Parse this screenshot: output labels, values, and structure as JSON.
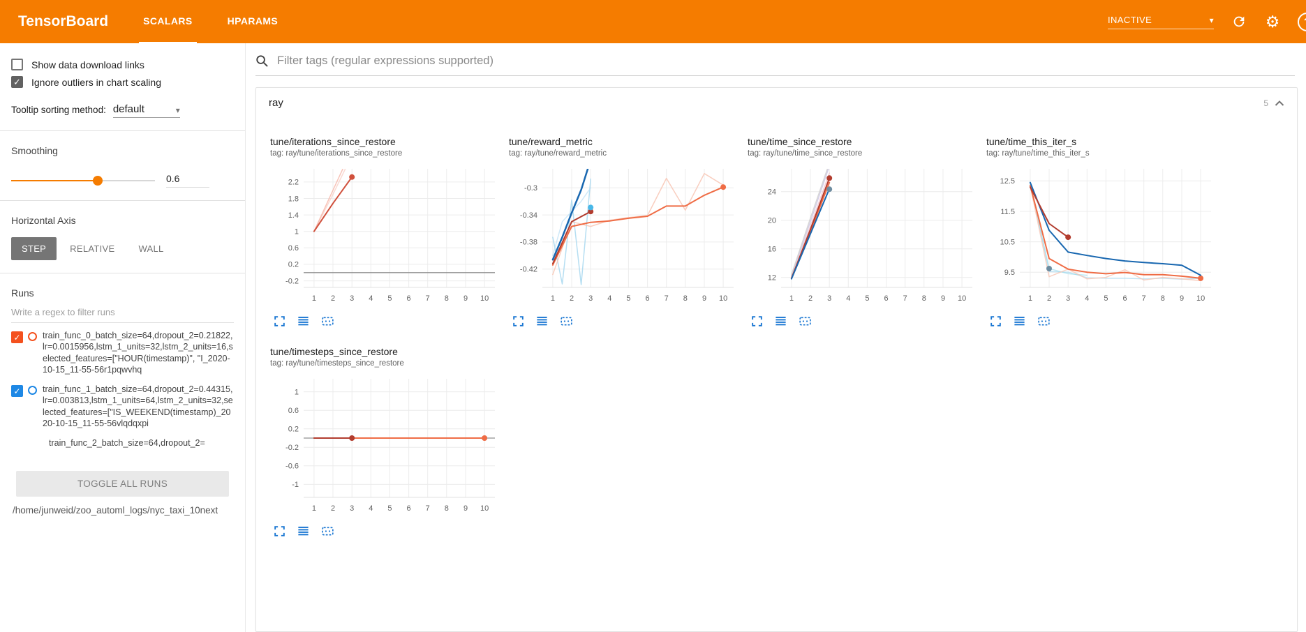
{
  "colors": {
    "accent": "#f57c00",
    "icon_blue": "#1976d2",
    "grid": "#ececec",
    "zero_line": "#8f8f8f",
    "tick_text": "#616161"
  },
  "glyphs": {
    "check": "✓",
    "caret_down": "▾",
    "gear": "⚙",
    "question": "?"
  },
  "header": {
    "title": "TensorBoard",
    "tabs": [
      {
        "label": "SCALARS",
        "active": true
      },
      {
        "label": "HPARAMS",
        "active": false
      }
    ],
    "status": "INACTIVE"
  },
  "sidebar": {
    "show_download": {
      "label": "Show data download links",
      "checked": false
    },
    "ignore_outliers": {
      "label": "Ignore outliers in chart scaling",
      "checked": true
    },
    "tooltip_sorting": {
      "label": "Tooltip sorting method:",
      "value": "default"
    },
    "smoothing": {
      "label": "Smoothing",
      "value": "0.6"
    },
    "horizontal_axis": {
      "label": "Horizontal Axis",
      "options": [
        "STEP",
        "RELATIVE",
        "WALL"
      ],
      "selected": "STEP"
    },
    "runs": {
      "label": "Runs",
      "filter_placeholder": "Write a regex to filter runs",
      "items": [
        {
          "name": "train_func_0_batch_size=64,dropout_2=0.21822,lr=0.0015956,lstm_1_units=32,lstm_2_units=16,selected_features=[\"HOUR(timestamp)\", \"I_2020-10-15_11-55-56r1pqwvhq",
          "color": "#f4511e",
          "checked": true,
          "partial": false
        },
        {
          "name": "train_func_1_batch_size=64,dropout_2=0.44315,lr=0.003813,lstm_1_units=64,lstm_2_units=32,selected_features=[\"IS_WEEKEND(timestamp)_2020-10-15_11-55-56vlqdqxpi",
          "color": "#1e88e5",
          "checked": true,
          "partial": false
        },
        {
          "name": "train_func_2_batch_size=64,dropout_2=",
          "color": "#b23c2e",
          "checked": true,
          "partial": true
        }
      ],
      "toggle_all_label": "TOGGLE ALL RUNS",
      "log_path": "/home/junweid/zoo_automl_logs/nyc_taxi_10next"
    }
  },
  "main": {
    "filter_placeholder": "Filter tags (regular expressions supported)",
    "group": {
      "title": "ray",
      "count": "5"
    }
  },
  "chart_data": [
    {
      "type": "line",
      "title": "tune/iterations_since_restore",
      "tag": "tag: ray/tune/iterations_since_restore",
      "xlim": [
        0.45,
        10.55
      ],
      "x_ticks": [
        1,
        2,
        3,
        4,
        5,
        6,
        7,
        8,
        9,
        10
      ],
      "ylim": [
        -0.36,
        2.52
      ],
      "y_ticks": [
        -0.2,
        0.2,
        0.6,
        1,
        1.4,
        1.8,
        2.2
      ],
      "zero_line": true,
      "series": [
        {
          "name": "raw-pink",
          "color": "#f8cdc4",
          "opacity": 0.75,
          "width": 1.5,
          "points": [
            [
              1,
              1
            ],
            [
              2,
              1.9
            ],
            [
              3,
              2.85
            ]
          ],
          "markers": []
        },
        {
          "name": "raw-salmon",
          "color": "#f5b0a2",
          "opacity": 0.75,
          "width": 1.5,
          "points": [
            [
              1,
              1
            ],
            [
              2,
              2
            ],
            [
              3,
              3
            ]
          ],
          "markers": []
        },
        {
          "name": "smoothed-red",
          "color": "#d0503c",
          "opacity": 1,
          "width": 2,
          "points": [
            [
              1,
              1
            ],
            [
              2,
              1.68
            ],
            [
              3,
              2.32
            ]
          ],
          "markers": [
            [
              3,
              2.32
            ]
          ]
        }
      ]
    },
    {
      "type": "line",
      "title": "tune/reward_metric",
      "tag": "tag: ray/tune/reward_metric",
      "xlim": [
        0.45,
        10.55
      ],
      "x_ticks": [
        1,
        2,
        3,
        4,
        5,
        6,
        7,
        8,
        9,
        10
      ],
      "ylim": [
        -0.447,
        -0.272
      ],
      "y_ticks": [
        -0.42,
        -0.38,
        -0.34,
        -0.3
      ],
      "zero_line": false,
      "series": [
        {
          "name": "raw-lightblue-zigzag",
          "color": "#a8d8f0",
          "opacity": 0.85,
          "width": 1.5,
          "points": [
            [
              1,
              -0.373
            ],
            [
              1.5,
              -0.442
            ],
            [
              2,
              -0.318
            ],
            [
              2.5,
              -0.443
            ],
            [
              3,
              -0.287
            ]
          ],
          "markers": []
        },
        {
          "name": "raw-lightblue",
          "color": "#bcdff5",
          "opacity": 0.7,
          "width": 1.5,
          "points": [
            [
              1,
              -0.4
            ],
            [
              1.5,
              -0.35
            ],
            [
              2,
              -0.335
            ],
            [
              2.5,
              -0.32
            ],
            [
              3,
              -0.3
            ]
          ],
          "markers": []
        },
        {
          "name": "raw-orange",
          "color": "#f8c5b4",
          "opacity": 0.85,
          "width": 1.5,
          "points": [
            [
              1,
              -0.428
            ],
            [
              2,
              -0.35
            ],
            [
              3,
              -0.357
            ],
            [
              4,
              -0.348
            ],
            [
              5,
              -0.344
            ],
            [
              6,
              -0.341
            ],
            [
              7,
              -0.286
            ],
            [
              8,
              -0.333
            ],
            [
              9,
              -0.279
            ],
            [
              10,
              -0.296
            ]
          ],
          "markers": []
        },
        {
          "name": "smoothed-orange",
          "color": "#ef6c45",
          "opacity": 1,
          "width": 2,
          "points": [
            [
              1,
              -0.414
            ],
            [
              2,
              -0.357
            ],
            [
              3,
              -0.351
            ],
            [
              4,
              -0.349
            ],
            [
              5,
              -0.345
            ],
            [
              6,
              -0.342
            ],
            [
              7,
              -0.327
            ],
            [
              8,
              -0.327
            ],
            [
              9,
              -0.311
            ],
            [
              10,
              -0.299
            ]
          ],
          "markers": [
            [
              10,
              -0.299
            ]
          ]
        },
        {
          "name": "smoothed-darkred",
          "color": "#b23c2e",
          "opacity": 1,
          "width": 2,
          "points": [
            [
              1,
              -0.412
            ],
            [
              2,
              -0.35
            ],
            [
              3,
              -0.335
            ]
          ],
          "markers": [
            [
              3,
              -0.335
            ]
          ]
        },
        {
          "name": "smoothed-blue",
          "color": "#1867b0",
          "opacity": 1,
          "width": 2.5,
          "points": [
            [
              1,
              -0.406
            ],
            [
              1.5,
              -0.373
            ],
            [
              2,
              -0.337
            ],
            [
              2.5,
              -0.303
            ],
            [
              2.85,
              -0.272
            ]
          ],
          "markers": []
        },
        {
          "name": "cyan-endpoint",
          "color": "#49b8e8",
          "opacity": 1,
          "width": 2,
          "points": [],
          "markers": [
            [
              3,
              -0.329
            ]
          ]
        }
      ]
    },
    {
      "type": "line",
      "title": "tune/time_since_restore",
      "tag": "tag: ray/tune/time_since_restore",
      "xlim": [
        0.45,
        10.55
      ],
      "x_ticks": [
        1,
        2,
        3,
        4,
        5,
        6,
        7,
        8,
        9,
        10
      ],
      "ylim": [
        10.6,
        27.2
      ],
      "y_ticks": [
        12,
        16,
        20,
        24
      ],
      "zero_line": false,
      "series": [
        {
          "name": "raw-lavender",
          "color": "#c9c2e4",
          "opacity": 0.8,
          "width": 1.5,
          "points": [
            [
              1,
              12.2
            ],
            [
              2,
              19.8
            ],
            [
              3,
              27.6
            ]
          ],
          "markers": []
        },
        {
          "name": "raw-pink",
          "color": "#f0bcc8",
          "opacity": 0.7,
          "width": 1.5,
          "points": [
            [
              1,
              12.0
            ],
            [
              2,
              19.2
            ],
            [
              3,
              26.6
            ]
          ],
          "markers": []
        },
        {
          "name": "raw-gray",
          "color": "#cfcfcf",
          "opacity": 0.85,
          "width": 1.5,
          "points": [
            [
              1,
              12.4
            ],
            [
              2,
              20.3
            ],
            [
              3,
              28
            ]
          ],
          "markers": []
        },
        {
          "name": "smoothed-orange",
          "color": "#ef6c45",
          "opacity": 1,
          "width": 2,
          "points": [
            [
              1,
              11.9
            ],
            [
              2,
              18.4
            ],
            [
              3,
              25.3
            ]
          ],
          "markers": []
        },
        {
          "name": "smoothed-darkred",
          "color": "#b23c2e",
          "opacity": 1,
          "width": 2,
          "points": [
            [
              1,
              11.85
            ],
            [
              2,
              18.7
            ],
            [
              3,
              25.9
            ]
          ],
          "markers": [
            [
              3,
              25.9
            ]
          ]
        },
        {
          "name": "smoothed-blue",
          "color": "#1867b0",
          "opacity": 1,
          "width": 2,
          "points": [
            [
              1,
              11.8
            ],
            [
              2,
              18.1
            ],
            [
              3,
              24.4
            ]
          ],
          "markers": []
        },
        {
          "name": "slate-endpoint",
          "color": "#6d8ca0",
          "opacity": 1,
          "width": 2,
          "points": [],
          "markers": [
            [
              3,
              24.35
            ]
          ]
        }
      ]
    },
    {
      "type": "line",
      "title": "tune/time_this_iter_s",
      "tag": "tag: ray/tune/time_this_iter_s",
      "xlim": [
        0.45,
        10.55
      ],
      "x_ticks": [
        1,
        2,
        3,
        4,
        5,
        6,
        7,
        8,
        9,
        10
      ],
      "ylim": [
        9.0,
        12.9
      ],
      "y_ticks": [
        9.5,
        10.5,
        11.5,
        12.5
      ],
      "zero_line": false,
      "series": [
        {
          "name": "raw-lightblue",
          "color": "#a8d8f0",
          "opacity": 0.7,
          "width": 1.5,
          "points": [
            [
              1,
              12.45
            ],
            [
              2,
              9.52
            ],
            [
              3,
              9.5
            ],
            [
              4,
              9.32
            ],
            [
              5,
              9.3
            ],
            [
              6,
              9.3
            ],
            [
              7,
              9.28
            ],
            [
              8,
              9.3
            ],
            [
              9,
              9.27
            ],
            [
              10,
              9.3
            ]
          ],
          "markers": []
        },
        {
          "name": "raw-cyan",
          "color": "#9adcec",
          "opacity": 0.65,
          "width": 1.5,
          "points": [
            [
              1,
              12.4
            ],
            [
              2,
              9.62
            ],
            [
              3,
              9.45
            ],
            [
              4,
              9.4
            ]
          ],
          "markers": []
        },
        {
          "name": "raw-pink",
          "color": "#f8c5b4",
          "opacity": 0.8,
          "width": 1.5,
          "points": [
            [
              1,
              12.35
            ],
            [
              2,
              9.35
            ],
            [
              3,
              9.6
            ],
            [
              4,
              9.28
            ],
            [
              5,
              9.33
            ],
            [
              6,
              9.58
            ],
            [
              7,
              9.24
            ],
            [
              8,
              9.33
            ],
            [
              9,
              9.28
            ],
            [
              10,
              9.22
            ]
          ],
          "markers": []
        },
        {
          "name": "smoothed-orange",
          "color": "#ef6c45",
          "opacity": 1,
          "width": 2,
          "points": [
            [
              1,
              12.35
            ],
            [
              2,
              9.95
            ],
            [
              3,
              9.6
            ],
            [
              4,
              9.5
            ],
            [
              5,
              9.45
            ],
            [
              6,
              9.49
            ],
            [
              7,
              9.42
            ],
            [
              8,
              9.42
            ],
            [
              9,
              9.37
            ],
            [
              10,
              9.3
            ]
          ],
          "markers": [
            [
              10,
              9.3
            ]
          ]
        },
        {
          "name": "smoothed-blue",
          "color": "#1867b0",
          "opacity": 1,
          "width": 2,
          "points": [
            [
              1,
              12.45
            ],
            [
              2,
              10.88
            ],
            [
              3,
              10.16
            ],
            [
              4,
              10.05
            ],
            [
              5,
              9.95
            ],
            [
              6,
              9.87
            ],
            [
              7,
              9.82
            ],
            [
              8,
              9.78
            ],
            [
              9,
              9.73
            ],
            [
              10,
              9.4
            ]
          ],
          "markers": []
        },
        {
          "name": "smoothed-darkred",
          "color": "#b23c2e",
          "opacity": 1,
          "width": 2,
          "points": [
            [
              1,
              12.3
            ],
            [
              2,
              11.1
            ],
            [
              3,
              10.65
            ]
          ],
          "markers": [
            [
              3,
              10.65
            ]
          ]
        },
        {
          "name": "slate-endpoint",
          "color": "#6d8ca0",
          "opacity": 1,
          "width": 2,
          "points": [],
          "markers": [
            [
              2,
              9.62
            ]
          ]
        }
      ]
    },
    {
      "type": "line",
      "title": "tune/timesteps_since_restore",
      "tag": "tag: ray/tune/timesteps_since_restore",
      "xlim": [
        0.45,
        10.55
      ],
      "x_ticks": [
        1,
        2,
        3,
        4,
        5,
        6,
        7,
        8,
        9,
        10
      ],
      "ylim": [
        -1.28,
        1.28
      ],
      "y_ticks": [
        -1,
        -0.6,
        -0.2,
        0.2,
        0.6,
        1
      ],
      "zero_line": true,
      "series": [
        {
          "name": "smoothed-orange",
          "color": "#ef6c45",
          "opacity": 1,
          "width": 2,
          "points": [
            [
              1,
              0
            ],
            [
              10,
              0
            ]
          ],
          "markers": [
            [
              10,
              0
            ]
          ]
        },
        {
          "name": "smoothed-darkred",
          "color": "#b23c2e",
          "opacity": 1,
          "width": 2,
          "points": [
            [
              1,
              0
            ],
            [
              3,
              0
            ]
          ],
          "markers": [
            [
              3,
              0
            ]
          ]
        }
      ]
    }
  ]
}
